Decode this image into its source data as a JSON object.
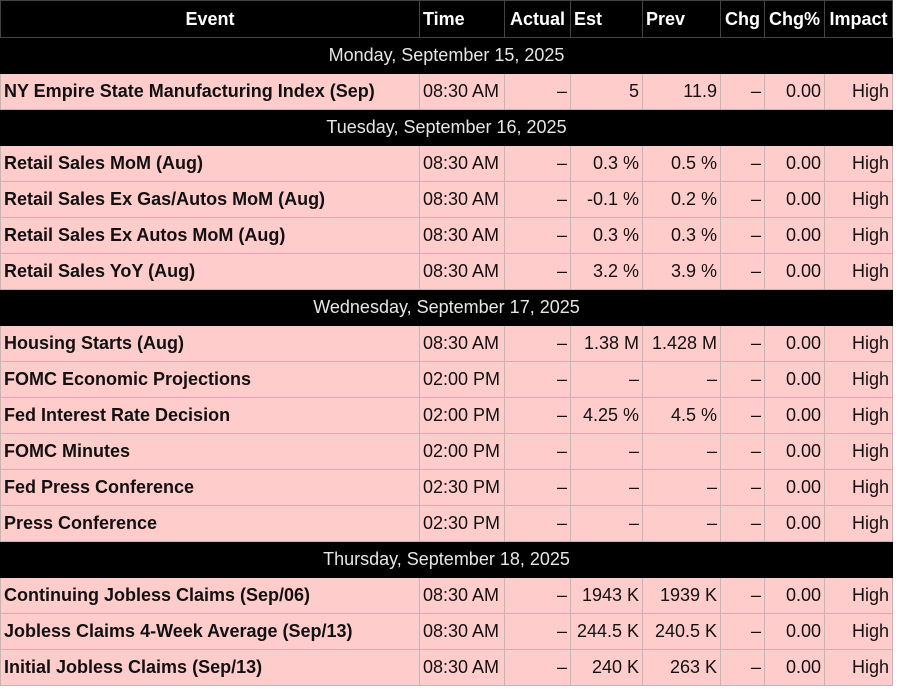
{
  "columns": [
    "Event",
    "Time",
    "Actual",
    "Est",
    "Prev",
    "Chg",
    "Chg%",
    "Impact"
  ],
  "days": [
    {
      "date": "Monday, September 15, 2025",
      "events": [
        {
          "event": "NY Empire State Manufacturing Index (Sep)",
          "time": "08:30 AM",
          "actual": "–",
          "est": "5",
          "prev": "11.9",
          "chg": "–",
          "chg_pct": "0.00",
          "impact": "High"
        }
      ]
    },
    {
      "date": "Tuesday, September 16, 2025",
      "events": [
        {
          "event": "Retail Sales MoM (Aug)",
          "time": "08:30 AM",
          "actual": "–",
          "est": "0.3 %",
          "prev": "0.5 %",
          "chg": "–",
          "chg_pct": "0.00",
          "impact": "High"
        },
        {
          "event": "Retail Sales Ex Gas/Autos MoM (Aug)",
          "time": "08:30 AM",
          "actual": "–",
          "est": "-0.1 %",
          "prev": "0.2 %",
          "chg": "–",
          "chg_pct": "0.00",
          "impact": "High"
        },
        {
          "event": "Retail Sales Ex Autos MoM (Aug)",
          "time": "08:30 AM",
          "actual": "–",
          "est": "0.3 %",
          "prev": "0.3 %",
          "chg": "–",
          "chg_pct": "0.00",
          "impact": "High"
        },
        {
          "event": "Retail Sales YoY (Aug)",
          "time": "08:30 AM",
          "actual": "–",
          "est": "3.2 %",
          "prev": "3.9 %",
          "chg": "–",
          "chg_pct": "0.00",
          "impact": "High"
        }
      ]
    },
    {
      "date": "Wednesday, September 17, 2025",
      "events": [
        {
          "event": "Housing Starts (Aug)",
          "time": "08:30 AM",
          "actual": "–",
          "est": "1.38 M",
          "prev": "1.428 M",
          "chg": "–",
          "chg_pct": "0.00",
          "impact": "High"
        },
        {
          "event": "FOMC Economic Projections",
          "time": "02:00 PM",
          "actual": "–",
          "est": "–",
          "prev": "–",
          "chg": "–",
          "chg_pct": "0.00",
          "impact": "High"
        },
        {
          "event": "Fed Interest Rate Decision",
          "time": "02:00 PM",
          "actual": "–",
          "est": "4.25 %",
          "prev": "4.5 %",
          "chg": "–",
          "chg_pct": "0.00",
          "impact": "High"
        },
        {
          "event": "FOMC Minutes",
          "time": "02:00 PM",
          "actual": "–",
          "est": "–",
          "prev": "–",
          "chg": "–",
          "chg_pct": "0.00",
          "impact": "High"
        },
        {
          "event": "Fed Press Conference",
          "time": "02:30 PM",
          "actual": "–",
          "est": "–",
          "prev": "–",
          "chg": "–",
          "chg_pct": "0.00",
          "impact": "High"
        },
        {
          "event": "Press Conference",
          "time": "02:30 PM",
          "actual": "–",
          "est": "–",
          "prev": "–",
          "chg": "–",
          "chg_pct": "0.00",
          "impact": "High"
        }
      ]
    },
    {
      "date": "Thursday, September 18, 2025",
      "events": [
        {
          "event": "Continuing Jobless Claims (Sep/06)",
          "time": "08:30 AM",
          "actual": "–",
          "est": "1943 K",
          "prev": "1939 K",
          "chg": "–",
          "chg_pct": "0.00",
          "impact": "High"
        },
        {
          "event": "Jobless Claims 4-Week Average (Sep/13)",
          "time": "08:30 AM",
          "actual": "–",
          "est": "244.5 K",
          "prev": "240.5 K",
          "chg": "–",
          "chg_pct": "0.00",
          "impact": "High"
        },
        {
          "event": "Initial Jobless Claims (Sep/13)",
          "time": "08:30 AM",
          "actual": "–",
          "est": "240 K",
          "prev": "263 K",
          "chg": "–",
          "chg_pct": "0.00",
          "impact": "High"
        }
      ]
    }
  ]
}
